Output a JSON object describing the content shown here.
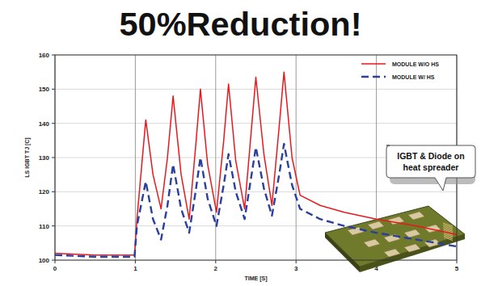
{
  "chart_data": {
    "type": "line",
    "title": "50%Reduction!",
    "xlabel": "TIME [S]",
    "ylabel": "LS IGBT TJ [C]",
    "annotation": "IGBT & Diode on heat spreader",
    "x": [
      0,
      0.5,
      0.99,
      1.02,
      1.13,
      1.22,
      1.32,
      1.4,
      1.47,
      1.57,
      1.67,
      1.75,
      1.81,
      1.9,
      2.01,
      2.1,
      2.16,
      2.25,
      2.36,
      2.44,
      2.5,
      2.6,
      2.7,
      2.79,
      2.85,
      2.95,
      3.05,
      3.3,
      3.6,
      4.0,
      4.5,
      5.0
    ],
    "series": [
      {
        "name": "MODULE W/O HS",
        "color": "#e8191e",
        "line_style": "solid",
        "values": [
          102,
          101.5,
          101.5,
          112,
          141,
          125,
          115,
          130,
          148,
          125,
          112,
          133,
          150,
          128,
          114,
          135,
          151.5,
          129,
          115,
          137,
          153.5,
          131,
          116,
          139,
          155,
          130,
          119,
          116,
          114,
          112,
          110,
          107.5
        ]
      },
      {
        "name": "MODULE W/ HS",
        "color": "#2b3f9e",
        "line_style": "dashed",
        "values": [
          101.5,
          101,
          101,
          110,
          123,
          112,
          106,
          116,
          128,
          115,
          108,
          120,
          130,
          118,
          110,
          122,
          131,
          120,
          112,
          124,
          133,
          121,
          113,
          125,
          134,
          122,
          115,
          112,
          110,
          108,
          106,
          104
        ]
      }
    ],
    "xlim": [
      0,
      5
    ],
    "xticks": [
      0,
      1,
      2,
      3,
      4,
      5
    ],
    "ylim": [
      100,
      160
    ],
    "yticks": [
      100,
      110,
      120,
      130,
      140,
      150,
      160
    ],
    "grid": true,
    "legend": "upper right"
  }
}
